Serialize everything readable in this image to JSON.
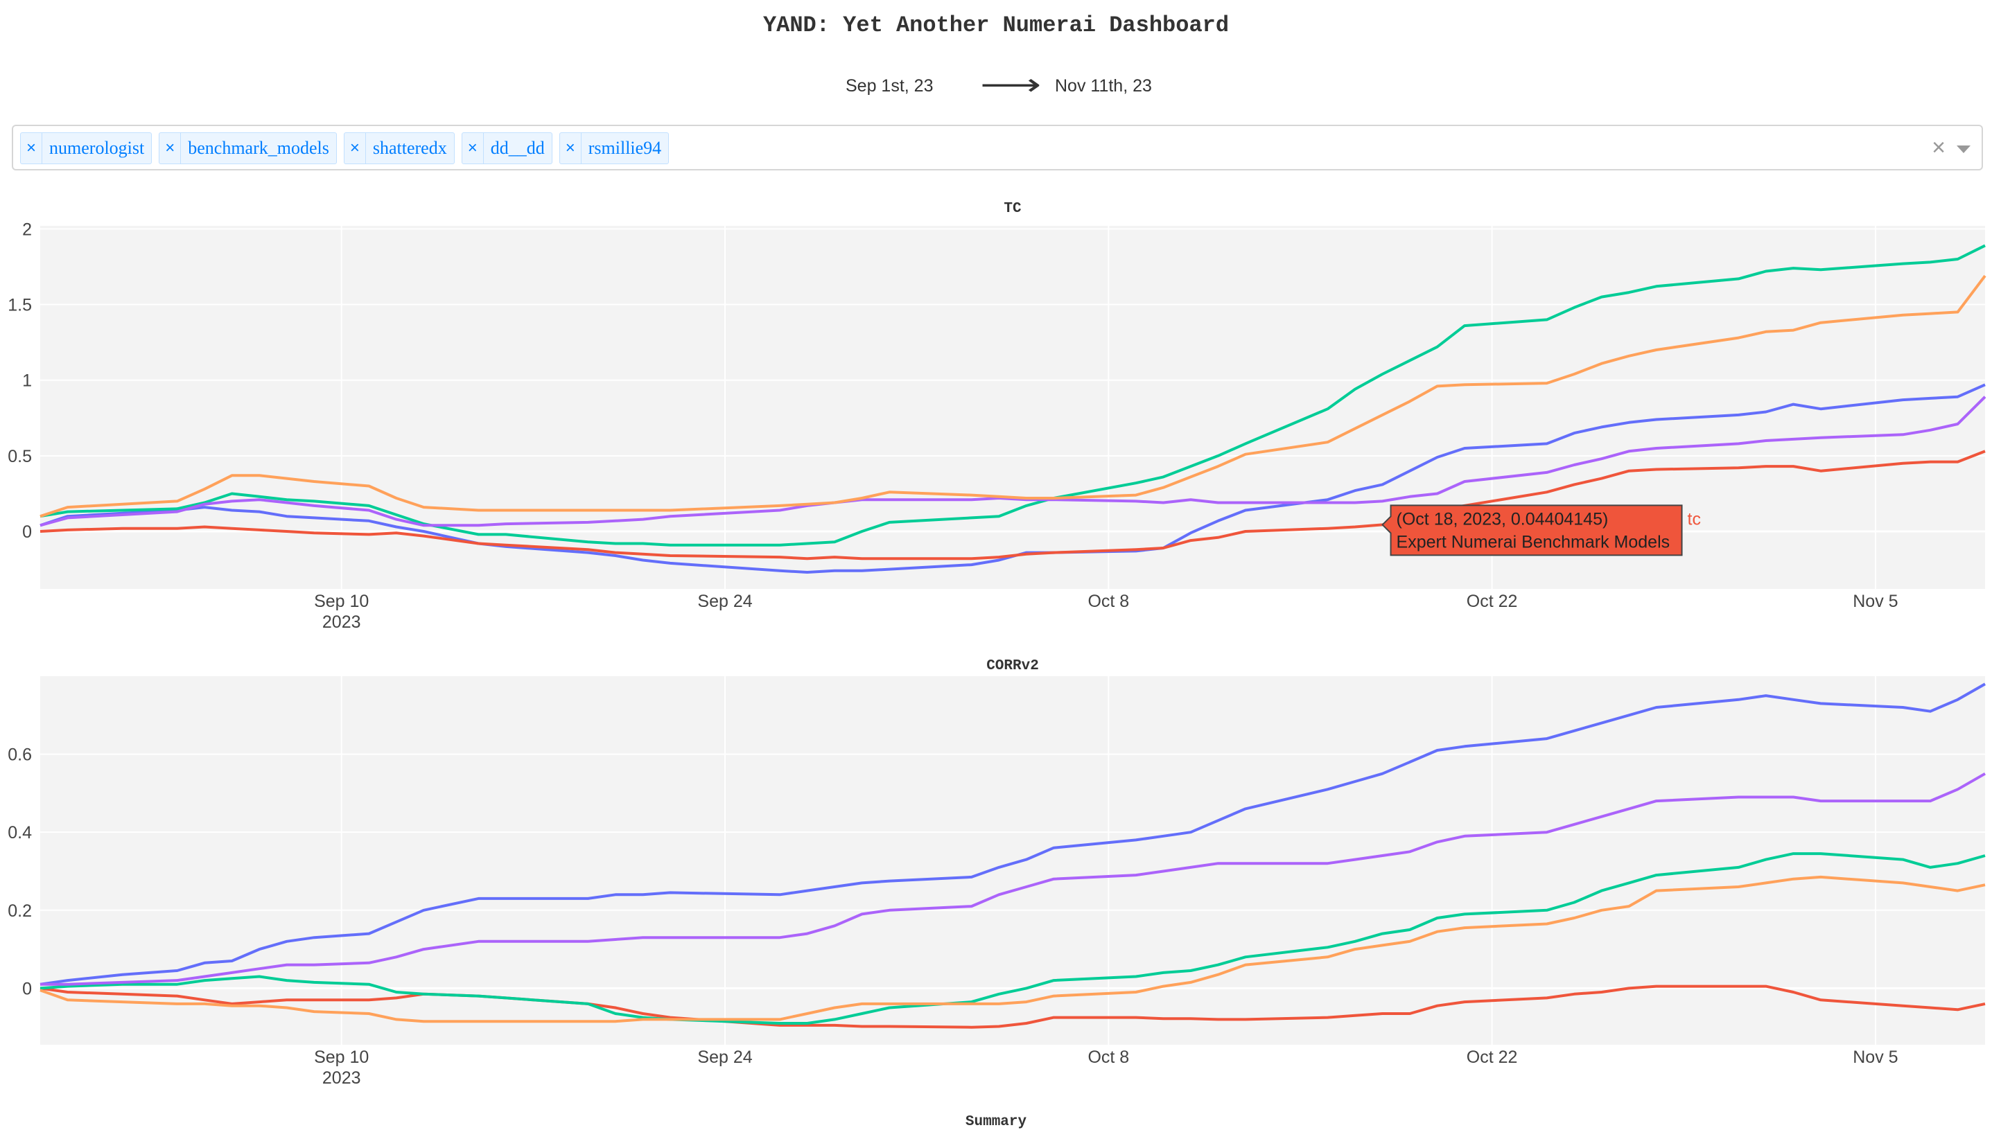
{
  "title": "YAND: Yet Another Numerai Dashboard",
  "date_range": {
    "start": "Sep 1st, 23",
    "end": "Nov 11th, 23",
    "arrow_icon": "long-right-arrow-icon"
  },
  "model_select": {
    "tags": [
      "numerologist",
      "benchmark_models",
      "shatteredx",
      "dd__dd",
      "rsmillie94"
    ],
    "remove_symbol": "×",
    "clear_symbol": "×",
    "dropdown_icon": "caret-down-icon"
  },
  "colors": {
    "plot_bg": "#f3f3f3",
    "grid": "#ffffff",
    "blue": "#636efa",
    "red": "#ef553b",
    "green": "#00cc96",
    "purple": "#ab63fa",
    "orange": "#ffa15a",
    "tag_bg": "#ebf5ff",
    "tag_text": "#007eff"
  },
  "summary_label": "Summary",
  "chart_data": [
    {
      "type": "line",
      "title": "TC",
      "x_range": [
        "2023-08-30",
        "2023-11-09"
      ],
      "ylim": [
        -0.38,
        2.02
      ],
      "y_ticks": [
        0,
        0.5,
        1,
        1.5,
        2
      ],
      "y_tick_labels": [
        "0",
        "0.5",
        "1",
        "1.5",
        "2"
      ],
      "x_ticks": [
        "2023-09-10",
        "2023-09-24",
        "2023-10-08",
        "2023-10-22",
        "2023-11-05"
      ],
      "x_tick_labels": [
        "Sep 10",
        "Sep 24",
        "Oct 8",
        "Oct 22",
        "Nov 5"
      ],
      "x_year_label": "2023",
      "grid": true,
      "x": [
        "2023-08-30",
        "2023-08-31",
        "2023-09-02",
        "2023-09-04",
        "2023-09-05",
        "2023-09-06",
        "2023-09-07",
        "2023-09-08",
        "2023-09-09",
        "2023-09-11",
        "2023-09-12",
        "2023-09-13",
        "2023-09-15",
        "2023-09-16",
        "2023-09-19",
        "2023-09-20",
        "2023-09-21",
        "2023-09-22",
        "2023-09-26",
        "2023-09-27",
        "2023-09-28",
        "2023-09-29",
        "2023-09-30",
        "2023-10-03",
        "2023-10-04",
        "2023-10-05",
        "2023-10-06",
        "2023-10-09",
        "2023-10-10",
        "2023-10-11",
        "2023-10-12",
        "2023-10-13",
        "2023-10-16",
        "2023-10-17",
        "2023-10-18",
        "2023-10-19",
        "2023-10-20",
        "2023-10-21",
        "2023-10-24",
        "2023-10-25",
        "2023-10-26",
        "2023-10-27",
        "2023-10-28",
        "2023-10-31",
        "2023-11-01",
        "2023-11-02",
        "2023-11-03",
        "2023-11-06",
        "2023-11-07",
        "2023-11-08",
        "2023-11-09"
      ],
      "series": [
        {
          "name": "",
          "color": "#636efa",
          "values": [
            0.04,
            0.1,
            0.12,
            0.14,
            0.16,
            0.14,
            0.13,
            0.1,
            0.09,
            0.07,
            0.03,
            0.0,
            -0.08,
            -0.1,
            -0.14,
            -0.16,
            -0.19,
            -0.21,
            -0.26,
            -0.27,
            -0.26,
            -0.26,
            -0.25,
            -0.22,
            -0.19,
            -0.14,
            -0.14,
            -0.13,
            -0.11,
            -0.01,
            0.07,
            0.14,
            0.21,
            0.27,
            0.31,
            0.4,
            0.49,
            0.55,
            0.58,
            0.65,
            0.69,
            0.72,
            0.74,
            0.77,
            0.79,
            0.84,
            0.81,
            0.87,
            0.88,
            0.89,
            0.97
          ]
        },
        {
          "name": "",
          "color": "#ef553b",
          "values": [
            0.0,
            0.01,
            0.02,
            0.02,
            0.03,
            0.02,
            0.01,
            0.0,
            -0.01,
            -0.02,
            -0.01,
            -0.03,
            -0.08,
            -0.09,
            -0.12,
            -0.14,
            -0.15,
            -0.16,
            -0.17,
            -0.18,
            -0.17,
            -0.18,
            -0.18,
            -0.18,
            -0.17,
            -0.15,
            -0.14,
            -0.12,
            -0.11,
            -0.06,
            -0.04,
            0.0,
            0.02,
            0.03,
            0.04404145,
            0.1,
            0.14,
            0.17,
            0.26,
            0.31,
            0.35,
            0.4,
            0.41,
            0.42,
            0.43,
            0.43,
            0.4,
            0.45,
            0.46,
            0.46,
            0.53
          ]
        },
        {
          "name": "",
          "color": "#00cc96",
          "values": [
            0.1,
            0.13,
            0.14,
            0.15,
            0.19,
            0.25,
            0.23,
            0.21,
            0.2,
            0.17,
            0.11,
            0.05,
            -0.02,
            -0.02,
            -0.07,
            -0.08,
            -0.08,
            -0.09,
            -0.09,
            -0.08,
            -0.07,
            0.0,
            0.06,
            0.09,
            0.1,
            0.17,
            0.22,
            0.32,
            0.36,
            0.43,
            0.5,
            0.58,
            0.81,
            0.94,
            1.04,
            1.13,
            1.22,
            1.36,
            1.4,
            1.48,
            1.55,
            1.58,
            1.62,
            1.67,
            1.72,
            1.74,
            1.73,
            1.77,
            1.78,
            1.8,
            1.89
          ]
        },
        {
          "name": "",
          "color": "#ab63fa",
          "values": [
            0.04,
            0.09,
            0.11,
            0.13,
            0.18,
            0.2,
            0.21,
            0.19,
            0.17,
            0.14,
            0.08,
            0.04,
            0.04,
            0.05,
            0.06,
            0.07,
            0.08,
            0.1,
            0.14,
            0.17,
            0.19,
            0.21,
            0.21,
            0.21,
            0.22,
            0.21,
            0.21,
            0.2,
            0.19,
            0.21,
            0.19,
            0.19,
            0.19,
            0.19,
            0.2,
            0.23,
            0.25,
            0.33,
            0.39,
            0.44,
            0.48,
            0.53,
            0.55,
            0.58,
            0.6,
            0.61,
            0.62,
            0.64,
            0.67,
            0.71,
            0.89
          ]
        },
        {
          "name": "",
          "color": "#ffa15a",
          "values": [
            0.1,
            0.16,
            0.18,
            0.2,
            0.28,
            0.37,
            0.37,
            0.35,
            0.33,
            0.3,
            0.22,
            0.16,
            0.14,
            0.14,
            0.14,
            0.14,
            0.14,
            0.14,
            0.17,
            0.18,
            0.19,
            0.22,
            0.26,
            0.24,
            0.23,
            0.22,
            0.22,
            0.24,
            0.29,
            0.36,
            0.43,
            0.51,
            0.59,
            0.68,
            0.77,
            0.86,
            0.96,
            0.97,
            0.98,
            1.04,
            1.11,
            1.16,
            1.2,
            1.28,
            1.32,
            1.33,
            1.38,
            1.43,
            1.44,
            1.45,
            1.69
          ]
        }
      ],
      "hover": {
        "text": "(Oct 18, 2023, 0.04404145)",
        "subtext": "Expert Numerai Benchmark Models",
        "label": "tc",
        "x": "2023-10-18",
        "y": 0.04404145
      }
    },
    {
      "type": "line",
      "title": "CORRv2",
      "x_range": [
        "2023-08-30",
        "2023-11-09"
      ],
      "ylim": [
        -0.145,
        0.8
      ],
      "y_ticks": [
        0,
        0.2,
        0.4,
        0.6
      ],
      "y_tick_labels": [
        "0",
        "0.2",
        "0.4",
        "0.6"
      ],
      "x_ticks": [
        "2023-09-10",
        "2023-09-24",
        "2023-10-08",
        "2023-10-22",
        "2023-11-05"
      ],
      "x_tick_labels": [
        "Sep 10",
        "Sep 24",
        "Oct 8",
        "Oct 22",
        "Nov 5"
      ],
      "x_year_label": "2023",
      "grid": true,
      "x": [
        "2023-08-30",
        "2023-08-31",
        "2023-09-02",
        "2023-09-04",
        "2023-09-05",
        "2023-09-06",
        "2023-09-07",
        "2023-09-08",
        "2023-09-09",
        "2023-09-11",
        "2023-09-12",
        "2023-09-13",
        "2023-09-15",
        "2023-09-16",
        "2023-09-19",
        "2023-09-20",
        "2023-09-21",
        "2023-09-22",
        "2023-09-26",
        "2023-09-27",
        "2023-09-28",
        "2023-09-29",
        "2023-09-30",
        "2023-10-03",
        "2023-10-04",
        "2023-10-05",
        "2023-10-06",
        "2023-10-09",
        "2023-10-10",
        "2023-10-11",
        "2023-10-12",
        "2023-10-13",
        "2023-10-16",
        "2023-10-17",
        "2023-10-18",
        "2023-10-19",
        "2023-10-20",
        "2023-10-21",
        "2023-10-24",
        "2023-10-25",
        "2023-10-26",
        "2023-10-27",
        "2023-10-28",
        "2023-10-31",
        "2023-11-01",
        "2023-11-02",
        "2023-11-03",
        "2023-11-06",
        "2023-11-07",
        "2023-11-08",
        "2023-11-09"
      ],
      "series": [
        {
          "name": "",
          "color": "#636efa",
          "values": [
            0.01,
            0.02,
            0.035,
            0.045,
            0.065,
            0.07,
            0.1,
            0.12,
            0.13,
            0.14,
            0.17,
            0.2,
            0.23,
            0.23,
            0.23,
            0.24,
            0.24,
            0.245,
            0.24,
            0.25,
            0.26,
            0.27,
            0.275,
            0.285,
            0.31,
            0.33,
            0.36,
            0.38,
            0.39,
            0.4,
            0.43,
            0.46,
            0.51,
            0.53,
            0.55,
            0.58,
            0.61,
            0.62,
            0.64,
            0.66,
            0.68,
            0.7,
            0.72,
            0.74,
            0.75,
            0.74,
            0.73,
            0.72,
            0.71,
            0.74,
            0.78
          ]
        },
        {
          "name": "",
          "color": "#ef553b",
          "values": [
            0.0,
            -0.01,
            -0.015,
            -0.02,
            -0.03,
            -0.04,
            -0.035,
            -0.03,
            -0.03,
            -0.03,
            -0.025,
            -0.015,
            -0.02,
            -0.025,
            -0.04,
            -0.05,
            -0.065,
            -0.075,
            -0.095,
            -0.095,
            -0.095,
            -0.098,
            -0.098,
            -0.1,
            -0.098,
            -0.09,
            -0.075,
            -0.075,
            -0.078,
            -0.078,
            -0.08,
            -0.08,
            -0.075,
            -0.07,
            -0.065,
            -0.065,
            -0.045,
            -0.035,
            -0.025,
            -0.015,
            -0.01,
            0.0,
            0.005,
            0.005,
            0.005,
            -0.01,
            -0.03,
            -0.045,
            -0.05,
            -0.055,
            -0.04
          ]
        },
        {
          "name": "",
          "color": "#00cc96",
          "values": [
            0.0,
            0.005,
            0.01,
            0.01,
            0.02,
            0.025,
            0.03,
            0.02,
            0.015,
            0.01,
            -0.01,
            -0.015,
            -0.02,
            -0.025,
            -0.04,
            -0.065,
            -0.075,
            -0.08,
            -0.09,
            -0.09,
            -0.08,
            -0.065,
            -0.05,
            -0.035,
            -0.015,
            0.0,
            0.02,
            0.03,
            0.04,
            0.045,
            0.06,
            0.08,
            0.105,
            0.12,
            0.14,
            0.15,
            0.18,
            0.19,
            0.2,
            0.22,
            0.25,
            0.27,
            0.29,
            0.31,
            0.33,
            0.345,
            0.345,
            0.33,
            0.31,
            0.32,
            0.34
          ]
        },
        {
          "name": "",
          "color": "#ab63fa",
          "values": [
            0.01,
            0.01,
            0.015,
            0.02,
            0.03,
            0.04,
            0.05,
            0.06,
            0.06,
            0.065,
            0.08,
            0.1,
            0.12,
            0.12,
            0.12,
            0.125,
            0.13,
            0.13,
            0.13,
            0.14,
            0.16,
            0.19,
            0.2,
            0.21,
            0.24,
            0.26,
            0.28,
            0.29,
            0.3,
            0.31,
            0.32,
            0.32,
            0.32,
            0.33,
            0.34,
            0.35,
            0.375,
            0.39,
            0.4,
            0.42,
            0.44,
            0.46,
            0.48,
            0.49,
            0.49,
            0.49,
            0.48,
            0.48,
            0.48,
            0.51,
            0.55
          ]
        },
        {
          "name": "",
          "color": "#ffa15a",
          "values": [
            -0.005,
            -0.03,
            -0.035,
            -0.04,
            -0.04,
            -0.045,
            -0.045,
            -0.05,
            -0.06,
            -0.065,
            -0.08,
            -0.085,
            -0.085,
            -0.085,
            -0.085,
            -0.085,
            -0.08,
            -0.08,
            -0.08,
            -0.065,
            -0.05,
            -0.04,
            -0.04,
            -0.04,
            -0.04,
            -0.035,
            -0.02,
            -0.01,
            0.005,
            0.015,
            0.035,
            0.06,
            0.08,
            0.1,
            0.11,
            0.12,
            0.145,
            0.155,
            0.165,
            0.18,
            0.2,
            0.21,
            0.25,
            0.26,
            0.27,
            0.28,
            0.285,
            0.27,
            0.26,
            0.25,
            0.265
          ]
        }
      ]
    }
  ]
}
